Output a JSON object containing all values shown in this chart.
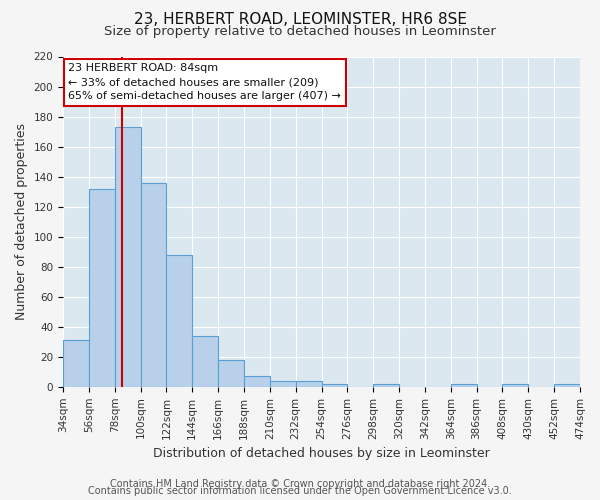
{
  "title": "23, HERBERT ROAD, LEOMINSTER, HR6 8SE",
  "subtitle": "Size of property relative to detached houses in Leominster",
  "xlabel": "Distribution of detached houses by size in Leominster",
  "ylabel": "Number of detached properties",
  "bin_edges": [
    34,
    56,
    78,
    100,
    122,
    144,
    166,
    188,
    210,
    232,
    254,
    276,
    298,
    320,
    342,
    364,
    386,
    408,
    430,
    452,
    474
  ],
  "bar_heights": [
    31,
    132,
    173,
    136,
    88,
    34,
    18,
    7,
    4,
    4,
    2,
    0,
    2,
    0,
    0,
    2,
    0,
    2,
    0,
    2
  ],
  "bar_facecolor": "#b8d0ea",
  "bar_edgecolor": "#5a9fd4",
  "vline_x": 84,
  "vline_color": "#cc0000",
  "ylim": [
    0,
    220
  ],
  "yticks": [
    0,
    20,
    40,
    60,
    80,
    100,
    120,
    140,
    160,
    180,
    200,
    220
  ],
  "tick_labels": [
    "34sqm",
    "56sqm",
    "78sqm",
    "100sqm",
    "122sqm",
    "144sqm",
    "166sqm",
    "188sqm",
    "210sqm",
    "232sqm",
    "254sqm",
    "276sqm",
    "298sqm",
    "320sqm",
    "342sqm",
    "364sqm",
    "386sqm",
    "408sqm",
    "430sqm",
    "452sqm",
    "474sqm"
  ],
  "annotation_title": "23 HERBERT ROAD: 84sqm",
  "annotation_line1": "← 33% of detached houses are smaller (209)",
  "annotation_line2": "65% of semi-detached houses are larger (407) →",
  "annotation_box_color": "#ffffff",
  "annotation_box_edge": "#cc0000",
  "footer1": "Contains HM Land Registry data © Crown copyright and database right 2024.",
  "footer2": "Contains public sector information licensed under the Open Government Licence v3.0.",
  "fig_bg_color": "#f5f5f5",
  "plot_bg_color": "#dce8f0",
  "grid_color": "#ffffff",
  "title_fontsize": 11,
  "subtitle_fontsize": 9.5,
  "axis_label_fontsize": 9,
  "tick_fontsize": 7.5,
  "annotation_fontsize": 8,
  "footer_fontsize": 7
}
